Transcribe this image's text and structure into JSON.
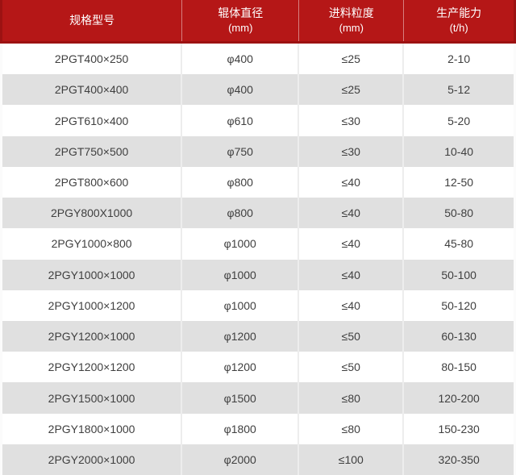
{
  "colors": {
    "header_bg": "#b51717",
    "header_edge": "#9c1212",
    "header_text": "#ffffff",
    "row_alt_bg": "#e0e0e0",
    "row_bg": "#ffffff",
    "body_text": "#3f3f3f",
    "divider": "#ededed",
    "page_bg": "#fbfbfb"
  },
  "chart_data": {
    "type": "table",
    "title": "",
    "columns": [
      {
        "label": "规格型号",
        "unit": ""
      },
      {
        "label": "辊体直径",
        "unit": "(mm)"
      },
      {
        "label": "进料粒度",
        "unit": "(mm)"
      },
      {
        "label": "生产能力",
        "unit": "(t/h)"
      }
    ],
    "rows": [
      [
        "2PGT400×250",
        "φ400",
        "≤25",
        "2-10"
      ],
      [
        "2PGT400×400",
        "φ400",
        "≤25",
        "5-12"
      ],
      [
        "2PGT610×400",
        "φ610",
        "≤30",
        "5-20"
      ],
      [
        "2PGT750×500",
        "φ750",
        "≤30",
        "10-40"
      ],
      [
        "2PGT800×600",
        "φ800",
        "≤40",
        "12-50"
      ],
      [
        "2PGY800X1000",
        "φ800",
        "≤40",
        "50-80"
      ],
      [
        "2PGY1000×800",
        "φ1000",
        "≤40",
        "45-80"
      ],
      [
        "2PGY1000×1000",
        "φ1000",
        "≤40",
        "50-100"
      ],
      [
        "2PGY1000×1200",
        "φ1000",
        "≤40",
        "50-120"
      ],
      [
        "2PGY1200×1000",
        "φ1200",
        "≤50",
        "60-130"
      ],
      [
        "2PGY1200×1200",
        "φ1200",
        "≤50",
        "80-150"
      ],
      [
        "2PGY1500×1000",
        "φ1500",
        "≤80",
        "120-200"
      ],
      [
        "2PGY1800×1000",
        "φ1800",
        "≤80",
        "150-230"
      ],
      [
        "2PGY2000×1000",
        "φ2000",
        "≤100",
        "320-350"
      ]
    ]
  }
}
